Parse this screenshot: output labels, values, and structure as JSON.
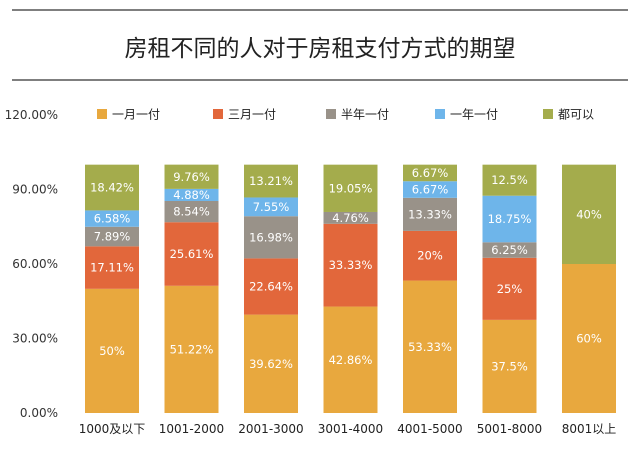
{
  "chart_data": {
    "type": "bar",
    "stacked": true,
    "title": "房租不同的人对于房租支付方式的期望",
    "categories": [
      "1000及以下",
      "1001-2000",
      "2001-3000",
      "3001-4000",
      "4001-5000",
      "5001-8000",
      "8001以上"
    ],
    "series": [
      {
        "name": "一月一付",
        "color": "#E8A83E",
        "values": [
          50,
          51.22,
          39.62,
          42.86,
          53.33,
          37.5,
          60
        ],
        "labels": [
          "50%",
          "51.22%",
          "39.62%",
          "42.86%",
          "53.33%",
          "37.5%",
          "60%"
        ]
      },
      {
        "name": "三月一付",
        "color": "#E2673B",
        "values": [
          17.11,
          25.61,
          22.64,
          33.33,
          20,
          25,
          0
        ],
        "labels": [
          "17.11%",
          "25.61%",
          "22.64%",
          "33.33%",
          "20%",
          "25%",
          ""
        ]
      },
      {
        "name": "半年一付",
        "color": "#999289",
        "values": [
          7.89,
          8.54,
          16.98,
          4.76,
          13.33,
          6.25,
          0
        ],
        "labels": [
          "7.89%",
          "8.54%",
          "16.98%",
          "4.76%",
          "13.33%",
          "6.25%",
          ""
        ]
      },
      {
        "name": "一年一付",
        "color": "#6EB5EA",
        "values": [
          6.58,
          4.88,
          7.55,
          0,
          6.67,
          18.75,
          0
        ],
        "labels": [
          "6.58%",
          "4.88%",
          "7.55%",
          "",
          "6.67%",
          "18.75%",
          ""
        ]
      },
      {
        "name": "都可以",
        "color": "#A4AC4C",
        "values": [
          18.42,
          9.76,
          13.21,
          19.05,
          6.67,
          12.5,
          40
        ],
        "labels": [
          "18.42%",
          "9.76%",
          "13.21%",
          "19.05%",
          "6.67%",
          "12.5%",
          "40%"
        ]
      }
    ],
    "yticks": [
      "0.00%",
      "30.00%",
      "60.00%",
      "90.00%",
      "120.00%"
    ],
    "ylim": [
      0,
      120
    ],
    "grid": false,
    "legend_position": "top"
  }
}
